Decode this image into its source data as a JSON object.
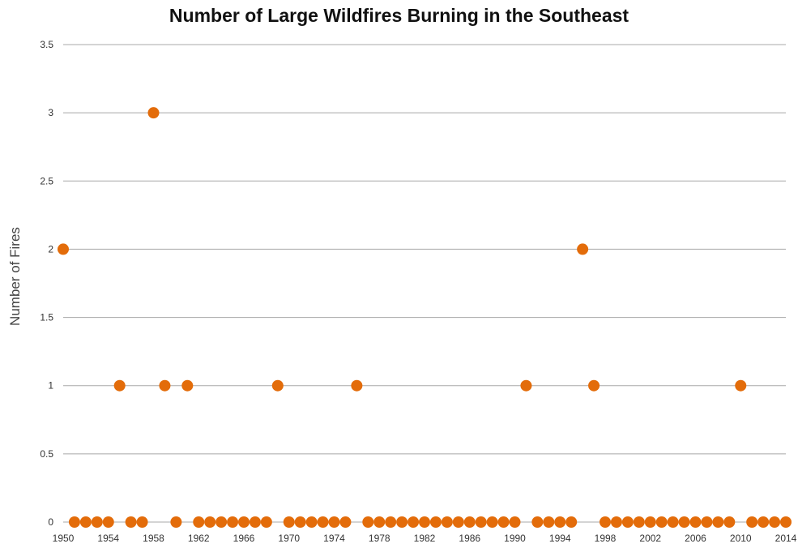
{
  "chart_data": {
    "type": "scatter",
    "title": "Number of Large Wildfires Burning in the Southeast",
    "xlabel": "",
    "ylabel": "Number of Fires",
    "xlim": [
      1950,
      2014
    ],
    "ylim": [
      0,
      3.5
    ],
    "y_ticks": [
      "0",
      "0.5",
      "1",
      "1.5",
      "2",
      "2.5",
      "3",
      "3.5"
    ],
    "x_ticks": [
      "1950",
      "1954",
      "1958",
      "1962",
      "1966",
      "1970",
      "1974",
      "1978",
      "1982",
      "1986",
      "1990",
      "1994",
      "1998",
      "2002",
      "2006",
      "2010",
      "2014"
    ],
    "grid": true,
    "marker_color": "#e36c0a",
    "points": [
      {
        "x": 1950,
        "y": 2
      },
      {
        "x": 1951,
        "y": 0
      },
      {
        "x": 1952,
        "y": 0
      },
      {
        "x": 1953,
        "y": 0
      },
      {
        "x": 1954,
        "y": 0
      },
      {
        "x": 1955,
        "y": 1
      },
      {
        "x": 1956,
        "y": 0
      },
      {
        "x": 1957,
        "y": 0
      },
      {
        "x": 1958,
        "y": 3
      },
      {
        "x": 1959,
        "y": 1
      },
      {
        "x": 1960,
        "y": 0
      },
      {
        "x": 1961,
        "y": 1
      },
      {
        "x": 1962,
        "y": 0
      },
      {
        "x": 1963,
        "y": 0
      },
      {
        "x": 1964,
        "y": 0
      },
      {
        "x": 1965,
        "y": 0
      },
      {
        "x": 1966,
        "y": 0
      },
      {
        "x": 1967,
        "y": 0
      },
      {
        "x": 1968,
        "y": 0
      },
      {
        "x": 1969,
        "y": 1
      },
      {
        "x": 1970,
        "y": 0
      },
      {
        "x": 1971,
        "y": 0
      },
      {
        "x": 1972,
        "y": 0
      },
      {
        "x": 1973,
        "y": 0
      },
      {
        "x": 1974,
        "y": 0
      },
      {
        "x": 1975,
        "y": 0
      },
      {
        "x": 1976,
        "y": 1
      },
      {
        "x": 1977,
        "y": 0
      },
      {
        "x": 1978,
        "y": 0
      },
      {
        "x": 1979,
        "y": 0
      },
      {
        "x": 1980,
        "y": 0
      },
      {
        "x": 1981,
        "y": 0
      },
      {
        "x": 1982,
        "y": 0
      },
      {
        "x": 1983,
        "y": 0
      },
      {
        "x": 1984,
        "y": 0
      },
      {
        "x": 1985,
        "y": 0
      },
      {
        "x": 1986,
        "y": 0
      },
      {
        "x": 1987,
        "y": 0
      },
      {
        "x": 1988,
        "y": 0
      },
      {
        "x": 1989,
        "y": 0
      },
      {
        "x": 1990,
        "y": 0
      },
      {
        "x": 1991,
        "y": 1
      },
      {
        "x": 1992,
        "y": 0
      },
      {
        "x": 1993,
        "y": 0
      },
      {
        "x": 1994,
        "y": 0
      },
      {
        "x": 1995,
        "y": 0
      },
      {
        "x": 1996,
        "y": 2
      },
      {
        "x": 1997,
        "y": 1
      },
      {
        "x": 1998,
        "y": 0
      },
      {
        "x": 1999,
        "y": 0
      },
      {
        "x": 2000,
        "y": 0
      },
      {
        "x": 2001,
        "y": 0
      },
      {
        "x": 2002,
        "y": 0
      },
      {
        "x": 2003,
        "y": 0
      },
      {
        "x": 2004,
        "y": 0
      },
      {
        "x": 2005,
        "y": 0
      },
      {
        "x": 2006,
        "y": 0
      },
      {
        "x": 2007,
        "y": 0
      },
      {
        "x": 2008,
        "y": 0
      },
      {
        "x": 2009,
        "y": 0
      },
      {
        "x": 2010,
        "y": 1
      },
      {
        "x": 2011,
        "y": 0
      },
      {
        "x": 2012,
        "y": 0
      },
      {
        "x": 2013,
        "y": 0
      },
      {
        "x": 2014,
        "y": 0
      }
    ]
  }
}
